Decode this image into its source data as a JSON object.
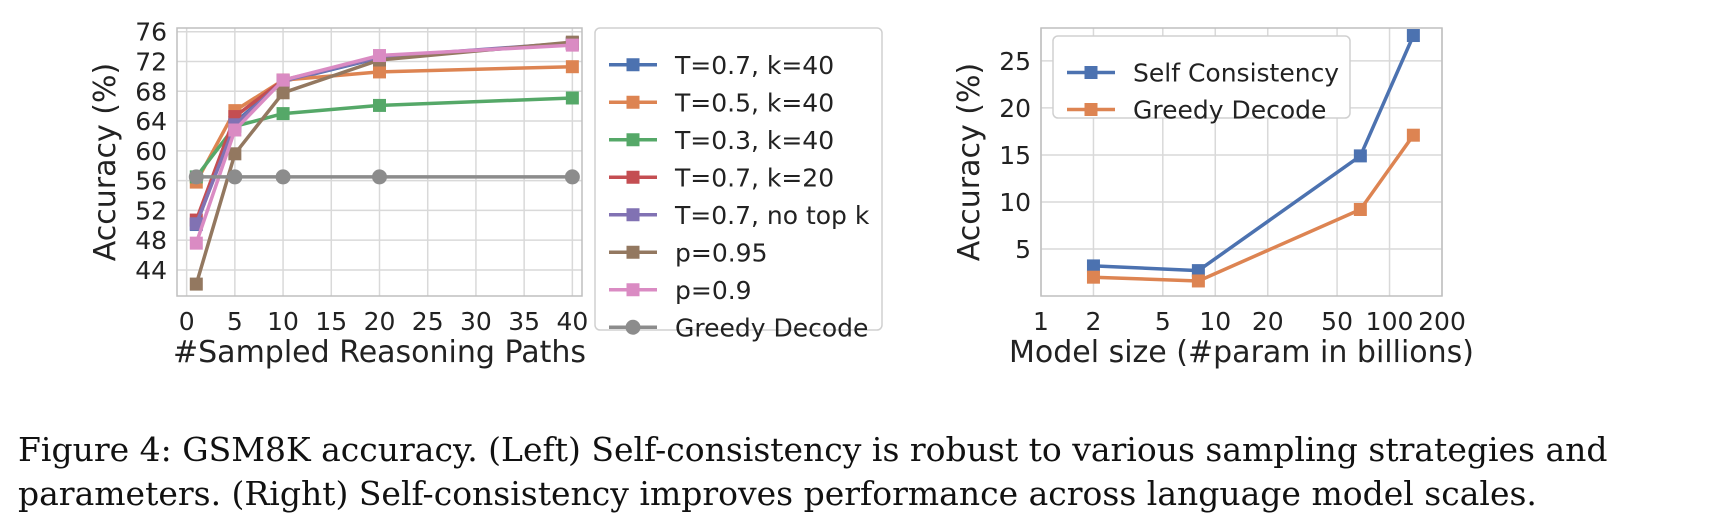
{
  "colors": {
    "blue": "#4c72b0",
    "orange": "#dd8452",
    "green": "#55a868",
    "red": "#c44e52",
    "purple": "#8172b3",
    "brown": "#937860",
    "pink": "#da8bc3",
    "gray": "#8c8c8c",
    "grid": "#d9d9d9",
    "axis": "#bfbfbf"
  },
  "chart_data": [
    {
      "type": "line",
      "title": "",
      "xlabel": "#Sampled Reasoning Paths",
      "ylabel": "Accuracy (%)",
      "xlim": [
        -1,
        41
      ],
      "ylim": [
        40.5,
        76.5
      ],
      "xticks": [
        0,
        5,
        10,
        15,
        20,
        25,
        30,
        35,
        40
      ],
      "yticks": [
        44,
        48,
        52,
        56,
        60,
        64,
        68,
        72,
        76
      ],
      "grid": true,
      "legend_position": "outside-right",
      "series": [
        {
          "name": "T=0.7, k=40",
          "color": "blue",
          "marker": "square",
          "x": [
            1,
            5,
            10,
            20,
            40
          ],
          "y": [
            50.1,
            63.8,
            69.3,
            72.5,
            74.4
          ]
        },
        {
          "name": "T=0.5, k=40",
          "color": "orange",
          "marker": "square",
          "x": [
            1,
            5,
            10,
            20,
            40
          ],
          "y": [
            55.8,
            65.4,
            69.5,
            70.6,
            71.3
          ]
        },
        {
          "name": "T=0.3, k=40",
          "color": "green",
          "marker": "square",
          "x": [
            1,
            5,
            10,
            20,
            40
          ],
          "y": [
            56.5,
            63.3,
            65.0,
            66.1,
            67.1
          ]
        },
        {
          "name": "T=0.7, k=20",
          "color": "red",
          "marker": "square",
          "x": [
            1,
            5,
            10,
            20,
            40
          ],
          "y": [
            50.7,
            64.6,
            69.5,
            72.6,
            74.4
          ]
        },
        {
          "name": "T=0.7, no top k",
          "color": "purple",
          "marker": "square",
          "x": [
            1,
            5,
            10,
            20,
            40
          ],
          "y": [
            50.2,
            63.5,
            69.4,
            72.6,
            74.5
          ]
        },
        {
          "name": "p=0.95",
          "color": "brown",
          "marker": "square",
          "x": [
            1,
            5,
            10,
            20,
            40
          ],
          "y": [
            42.1,
            59.6,
            67.8,
            72.2,
            74.6
          ]
        },
        {
          "name": "p=0.9",
          "color": "pink",
          "marker": "square",
          "x": [
            1,
            5,
            10,
            20,
            40
          ],
          "y": [
            47.6,
            62.8,
            69.5,
            72.8,
            74.2
          ]
        },
        {
          "name": "Greedy Decode",
          "color": "gray",
          "marker": "circle",
          "x": [
            1,
            5,
            10,
            20,
            40
          ],
          "y": [
            56.5,
            56.5,
            56.5,
            56.5,
            56.5
          ]
        }
      ]
    },
    {
      "type": "line",
      "title": "",
      "xlabel": "Model size (#param in billions)",
      "ylabel": "Accuracy (%)",
      "xscale": "log",
      "xlim": [
        1,
        200
      ],
      "ylim": [
        0,
        28.5
      ],
      "xticks": [
        1,
        2,
        5,
        10,
        20,
        50,
        100,
        200
      ],
      "xticklabels": [
        "1",
        "2",
        "5",
        "10",
        "20",
        "50",
        "100",
        "200"
      ],
      "yticks": [
        5,
        10,
        15,
        20,
        25
      ],
      "grid": true,
      "legend_position": "upper-left",
      "series": [
        {
          "name": "Self Consistency",
          "color": "blue",
          "marker": "square",
          "x": [
            2,
            8,
            68,
            137
          ],
          "y": [
            3.2,
            2.7,
            14.9,
            27.7
          ]
        },
        {
          "name": "Greedy Decode",
          "color": "orange",
          "marker": "square",
          "x": [
            2,
            8,
            68,
            137
          ],
          "y": [
            2.0,
            1.6,
            9.2,
            17.1
          ]
        }
      ]
    }
  ],
  "caption": {
    "line1": "Figure 4: GSM8K accuracy. (Left) Self-consistency is robust to various sampling strategies and",
    "line2": "parameters. (Right) Self-consistency improves performance across language model scales."
  }
}
